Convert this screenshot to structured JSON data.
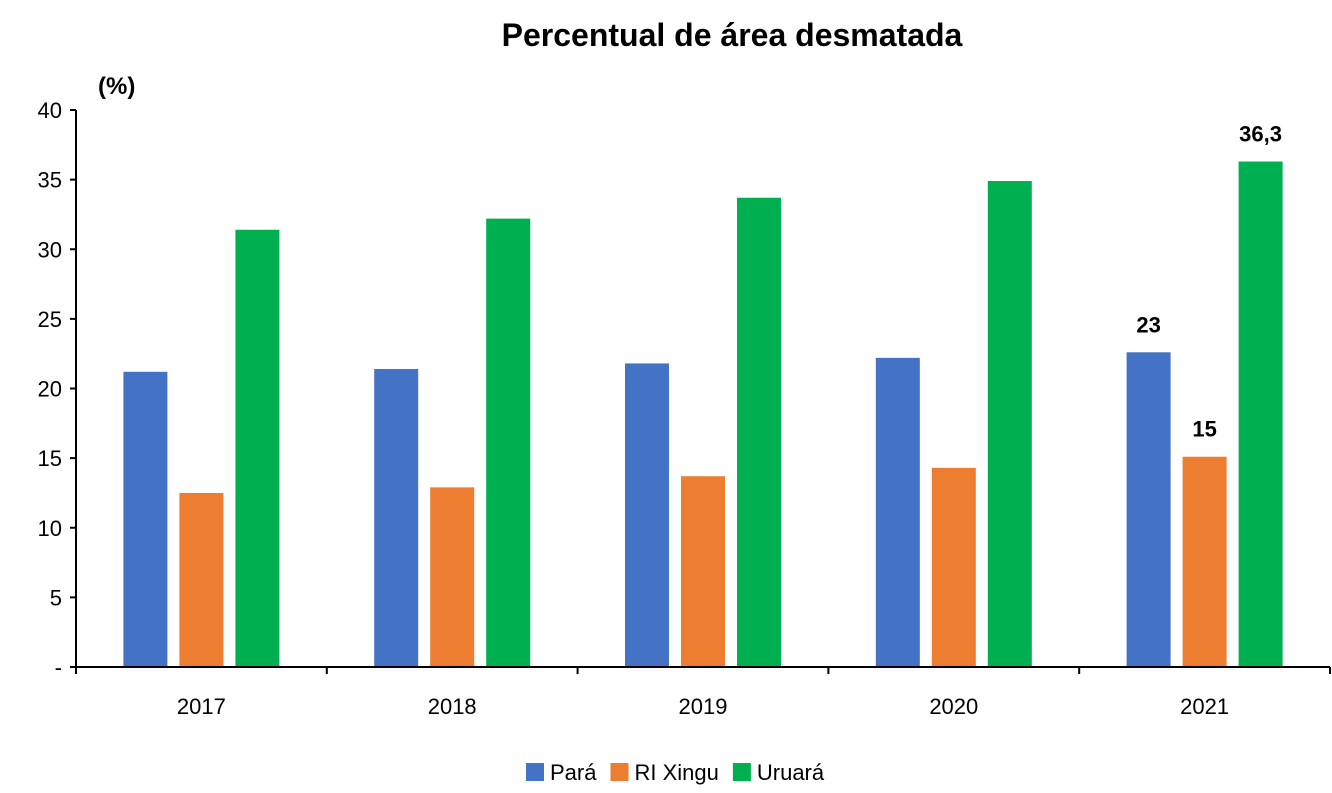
{
  "chart_data": {
    "type": "bar",
    "title": "Percentual de área desmatada",
    "unit_label": "(%)",
    "categories": [
      "2017",
      "2018",
      "2019",
      "2020",
      "2021"
    ],
    "series": [
      {
        "name": "Pará",
        "color": "#4472C4",
        "values": [
          21.2,
          21.4,
          21.8,
          22.2,
          22.6
        ]
      },
      {
        "name": "RI Xingu",
        "color": "#ED7D31",
        "values": [
          12.5,
          12.9,
          13.7,
          14.3,
          15.1
        ]
      },
      {
        "name": "Uruará",
        "color": "#00B050",
        "values": [
          31.4,
          32.2,
          33.7,
          34.9,
          36.3
        ]
      }
    ],
    "ylim": [
      0,
      40
    ],
    "yticks": [
      {
        "value": 0,
        "label": "-"
      },
      {
        "value": 5,
        "label": "5"
      },
      {
        "value": 10,
        "label": "10"
      },
      {
        "value": 15,
        "label": "15"
      },
      {
        "value": 20,
        "label": "20"
      },
      {
        "value": 25,
        "label": "25"
      },
      {
        "value": 30,
        "label": "30"
      },
      {
        "value": 35,
        "label": "35"
      },
      {
        "value": 40,
        "label": "40"
      }
    ],
    "data_labels": [
      {
        "series": 0,
        "category": 4,
        "text": "23"
      },
      {
        "series": 1,
        "category": 4,
        "text": "15"
      },
      {
        "series": 2,
        "category": 4,
        "text": "36,3"
      }
    ],
    "legend_position": "bottom",
    "grid": false
  }
}
